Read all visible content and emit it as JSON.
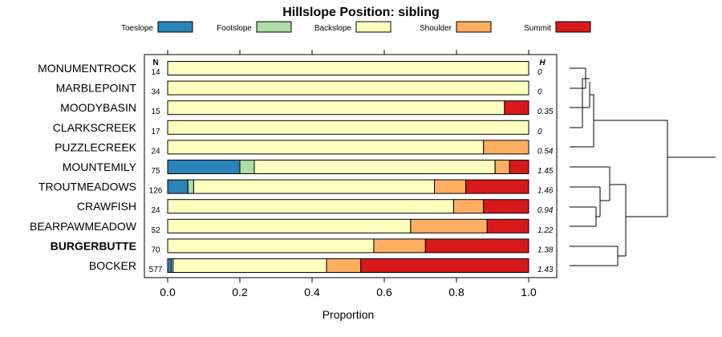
{
  "chart_data": {
    "type": "bar",
    "stacked": true,
    "orientation": "horizontal",
    "title": "Hillslope Position: sibling",
    "xlabel": "Proportion",
    "xlim": [
      0,
      1
    ],
    "xticks": [
      "0.0",
      "0.2",
      "0.4",
      "0.6",
      "0.8",
      "1.0"
    ],
    "xtick_values": [
      0,
      0.2,
      0.4,
      0.6,
      0.8,
      1.0
    ],
    "n_label": "N",
    "h_label": "H",
    "legend": [
      {
        "name": "Toeslope",
        "color": "#2b83ba"
      },
      {
        "name": "Footslope",
        "color": "#abdda4"
      },
      {
        "name": "Backslope",
        "color": "#ffffbf"
      },
      {
        "name": "Shoulder",
        "color": "#fdae61"
      },
      {
        "name": "Summit",
        "color": "#d7191c"
      }
    ],
    "highlight": "BURGERBUTTE",
    "categories": [
      "MONUMENTROCK",
      "MARBLEPOINT",
      "MOODYBASIN",
      "CLARKSCREEK",
      "PUZZLECREEK",
      "MOUNTEMILY",
      "TROUTMEADOWS",
      "CRAWFISH",
      "BEARPAWMEADOW",
      "BURGERBUTTE",
      "BOCKER"
    ],
    "n": [
      "14",
      "34",
      "15",
      "17",
      "24",
      "75",
      "126",
      "24",
      "52",
      "70",
      "577"
    ],
    "h": [
      "0",
      "0",
      "0.35",
      "0",
      "0.54",
      "1.45",
      "1.46",
      "0.94",
      "1.22",
      "1.38",
      "1.43"
    ],
    "series": [
      {
        "name": "Toeslope",
        "values": [
          0,
          0,
          0,
          0,
          0,
          0.2,
          0.056,
          0,
          0,
          0,
          0.01
        ]
      },
      {
        "name": "Footslope",
        "values": [
          0,
          0,
          0,
          0,
          0,
          0.04,
          0.016,
          0,
          0,
          0,
          0.005
        ]
      },
      {
        "name": "Backslope",
        "values": [
          1.0,
          1.0,
          0.933,
          1.0,
          0.875,
          0.667,
          0.667,
          0.792,
          0.673,
          0.571,
          0.425
        ]
      },
      {
        "name": "Shoulder",
        "values": [
          0,
          0,
          0,
          0,
          0.125,
          0.04,
          0.087,
          0.083,
          0.212,
          0.143,
          0.095
        ]
      },
      {
        "name": "Summit",
        "values": [
          0,
          0,
          0.067,
          0,
          0,
          0.053,
          0.174,
          0.125,
          0.115,
          0.286,
          0.465
        ]
      }
    ]
  }
}
